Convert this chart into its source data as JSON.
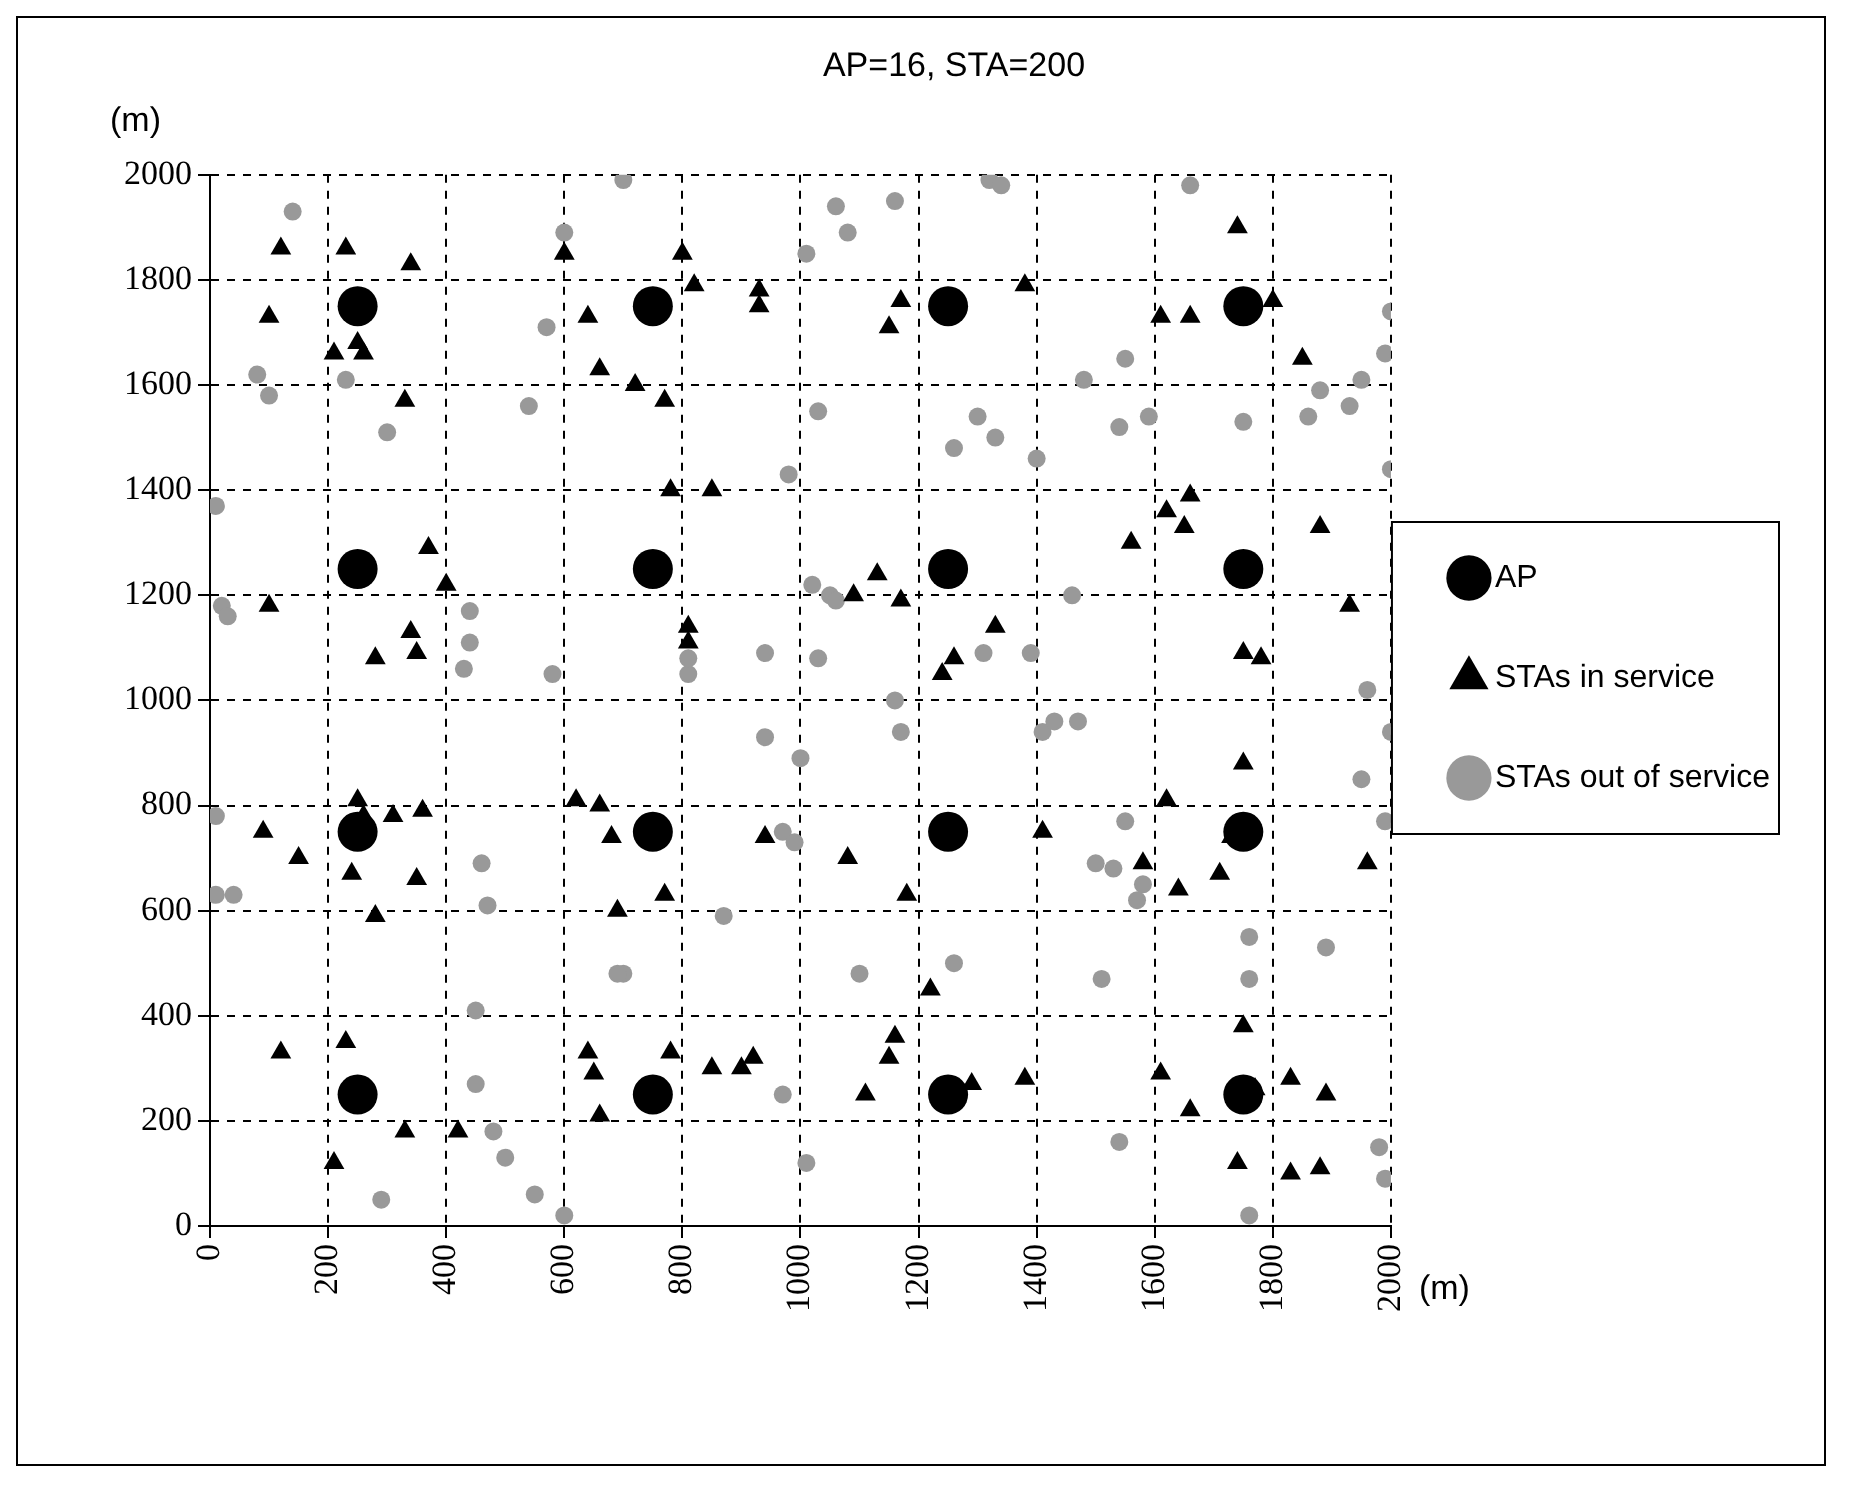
{
  "chart_data": {
    "type": "scatter",
    "title": "AP=16, STA=200",
    "xlabel": "(m)",
    "ylabel": "(m)",
    "xlim": [
      0,
      2000
    ],
    "xticks": [
      0,
      200,
      400,
      600,
      800,
      1000,
      1200,
      1400,
      1600,
      1800,
      2000
    ],
    "ylim": [
      0,
      2000
    ],
    "yticks": [
      0,
      200,
      400,
      600,
      800,
      1000,
      1200,
      1400,
      1600,
      1800,
      2000
    ],
    "grid": true,
    "legend": "right",
    "series": [
      {
        "name": "AP",
        "color": "#000000",
        "marker": "circle",
        "x": [
          250,
          750,
          1250,
          1750,
          250,
          750,
          1250,
          1750,
          250,
          750,
          1250,
          1750,
          250,
          750,
          1250,
          1750
        ],
        "values": [
          1750,
          1750,
          1750,
          1750,
          1250,
          1250,
          1250,
          1250,
          750,
          750,
          750,
          750,
          250,
          250,
          250,
          250
        ]
      },
      {
        "name": "STAs in service",
        "color": "#000000",
        "marker": "triangle",
        "x": [
          100,
          120,
          230,
          210,
          250,
          260,
          330,
          340,
          600,
          640,
          660,
          720,
          770,
          800,
          820,
          780,
          850,
          930,
          930,
          1150,
          1170,
          1380,
          1740,
          1610,
          1660,
          1800,
          1850,
          100,
          370,
          400,
          340,
          350,
          280,
          810,
          810,
          1090,
          1130,
          1170,
          1240,
          1260,
          1330,
          1410,
          1560,
          1620,
          1650,
          1660,
          1880,
          1930,
          1750,
          1780,
          1750,
          1730,
          1710,
          1620,
          1640,
          1580,
          250,
          260,
          240,
          310,
          360,
          350,
          280,
          90,
          150,
          620,
          660,
          690,
          680,
          770,
          940,
          1080,
          1180,
          120,
          210,
          230,
          330,
          420,
          640,
          650,
          660,
          780,
          850,
          900,
          920,
          1110,
          1150,
          1160,
          1220,
          1290,
          1380,
          1610,
          1660,
          1740,
          1750,
          1770,
          1830,
          1830,
          1880,
          1890,
          1960
        ],
        "values": [
          1730,
          1860,
          1860,
          1660,
          1680,
          1660,
          1570,
          1830,
          1850,
          1730,
          1630,
          1600,
          1570,
          1850,
          1790,
          1400,
          1400,
          1780,
          1750,
          1710,
          1760,
          1790,
          1900,
          1730,
          1730,
          1760,
          1650,
          1180,
          1290,
          1220,
          1130,
          1090,
          1080,
          1140,
          1110,
          1200,
          1240,
          1190,
          1050,
          1080,
          1140,
          750,
          1300,
          1360,
          1330,
          1390,
          1330,
          1180,
          1090,
          1080,
          880,
          740,
          670,
          810,
          640,
          690,
          810,
          780,
          670,
          780,
          790,
          660,
          590,
          750,
          700,
          810,
          800,
          600,
          740,
          630,
          740,
          700,
          630,
          330,
          120,
          350,
          180,
          180,
          330,
          290,
          210,
          330,
          300,
          300,
          320,
          250,
          320,
          360,
          450,
          270,
          280,
          290,
          220,
          120,
          380,
          260,
          280,
          100,
          110,
          250,
          690
        ]
      },
      {
        "name": "STAs out of service",
        "color": "#999999",
        "marker": "circle",
        "x": [
          140,
          80,
          100,
          300,
          230,
          10,
          20,
          30,
          10,
          10,
          40,
          440,
          440,
          430,
          460,
          470,
          450,
          450,
          480,
          500,
          550,
          600,
          290,
          540,
          570,
          600,
          580,
          700,
          700,
          690,
          810,
          810,
          870,
          940,
          940,
          970,
          970,
          990,
          980,
          1010,
          1060,
          1020,
          1030,
          1050,
          1030,
          1060,
          1000,
          1010,
          1100,
          1080,
          1160,
          1160,
          1170,
          1260,
          1300,
          1320,
          1340,
          1330,
          1260,
          1310,
          1390,
          1400,
          1410,
          1430,
          1460,
          1480,
          1500,
          1510,
          1530,
          1540,
          1550,
          1540,
          1550,
          1590,
          1580,
          1660,
          1750,
          1760,
          1760,
          1760,
          1860,
          1880,
          1890,
          1930,
          1950,
          1960,
          1950,
          1990,
          2000,
          2000,
          2000,
          1990,
          1980,
          1990,
          1570,
          1470
        ],
        "values": [
          1930,
          1620,
          1580,
          1510,
          1610,
          1370,
          1180,
          1160,
          780,
          630,
          630,
          1170,
          1110,
          1060,
          690,
          610,
          410,
          270,
          180,
          130,
          60,
          20,
          50,
          1560,
          1710,
          1890,
          1050,
          1990,
          480,
          480,
          1050,
          1080,
          590,
          1090,
          930,
          250,
          750,
          730,
          1430,
          1850,
          1940,
          1220,
          1550,
          1200,
          1080,
          1190,
          890,
          120,
          480,
          1890,
          1950,
          1000,
          940,
          1480,
          1540,
          1990,
          1980,
          1500,
          500,
          1090,
          1090,
          1460,
          940,
          960,
          1200,
          1610,
          690,
          470,
          680,
          1520,
          1650,
          160,
          770,
          1540,
          650,
          1980,
          1530,
          470,
          20,
          550,
          1540,
          1590,
          530,
          1560,
          1610,
          1020,
          850,
          1660,
          1740,
          1440,
          940,
          770,
          150,
          90,
          620,
          960
        ]
      }
    ]
  }
}
